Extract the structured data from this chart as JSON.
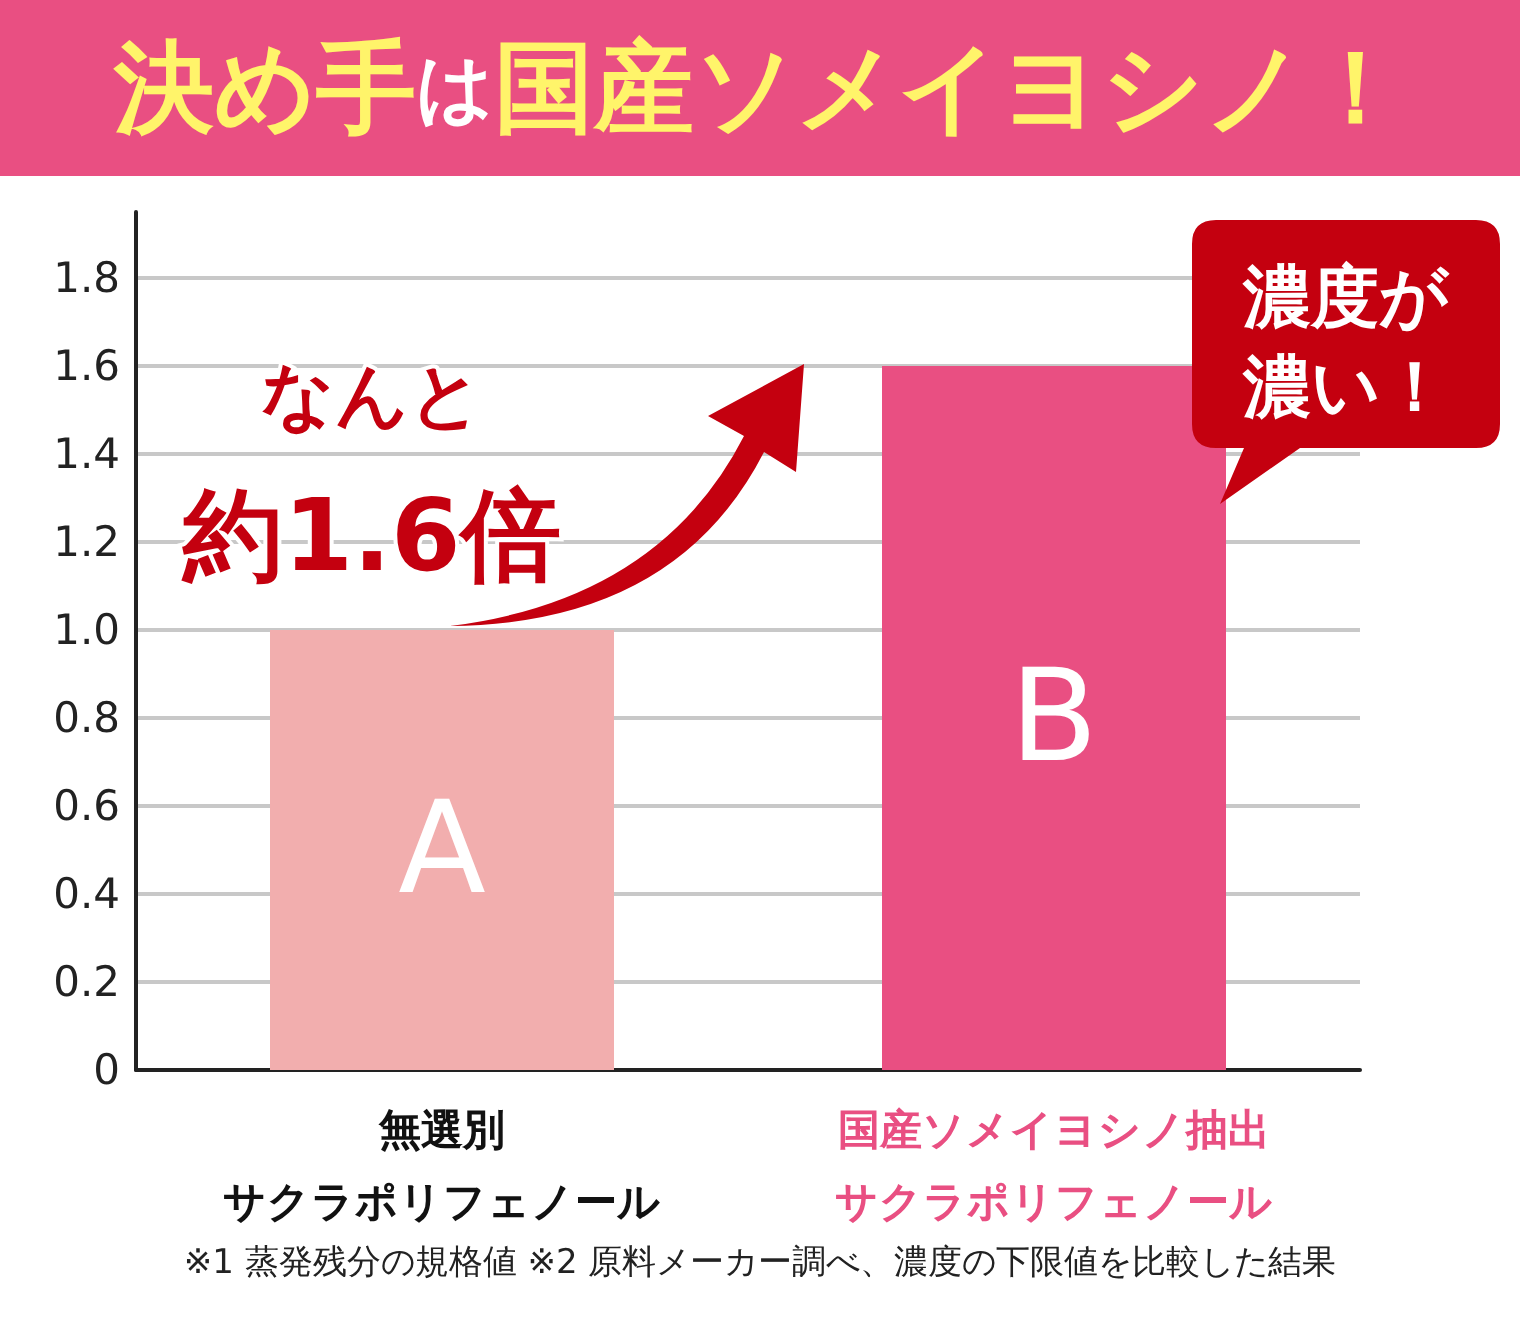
{
  "chart_data": {
    "type": "bar",
    "title": "決め手は国産ソメイヨシノ！",
    "categories": [
      "無選別サクラポリフェノール",
      "国産ソメイヨシノ抽出サクラポリフェノール"
    ],
    "values": [
      1.0,
      1.6
    ],
    "colors": [
      "#f2aeae",
      "#e94f82"
    ],
    "value_labels": [
      "A",
      "B"
    ],
    "ylim": [
      0,
      1.95
    ],
    "yticks": [
      0,
      0.2,
      0.4,
      0.6,
      0.8,
      {
        "value": 1,
        "label": "1.0"
      },
      1.2,
      1.4,
      1.6,
      1.8
    ],
    "grid": "y",
    "annotations": [
      "なんと約1.6倍",
      "濃度が濃い！",
      "※1 蒸発残分の規格値 ※2 原料メーカー調べ、濃度の下限値を比較した結果"
    ]
  }
}
